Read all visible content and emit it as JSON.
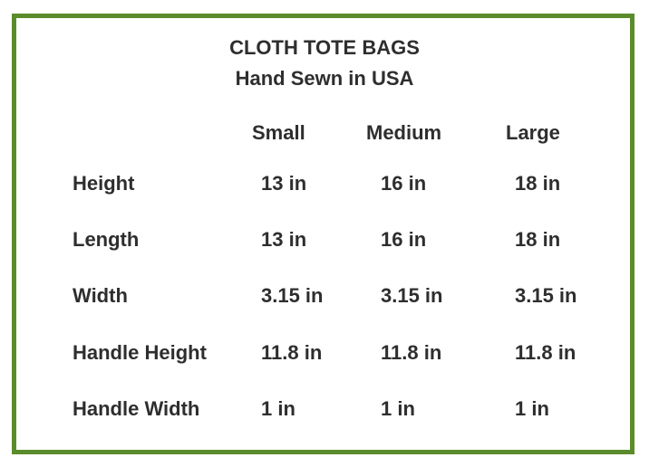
{
  "title": "CLOTH TOTE BAGS",
  "subtitle": "Hand Sewn in USA",
  "border_color": "#5b8c2c",
  "columns": [
    "Small",
    "Medium",
    "Large"
  ],
  "rows": [
    {
      "label": "Height",
      "values": [
        "13 in",
        "16 in",
        "18 in"
      ]
    },
    {
      "label": "Length",
      "values": [
        "13 in",
        "16 in",
        "18 in"
      ]
    },
    {
      "label": "Width",
      "values": [
        "3.15 in",
        "3.15 in",
        "3.15 in"
      ]
    },
    {
      "label": "Handle Height",
      "values": [
        "11.8 in",
        "11.8 in",
        "11.8 in"
      ]
    },
    {
      "label": "Handle Width",
      "values": [
        "1 in",
        "1 in",
        "1 in"
      ]
    }
  ]
}
